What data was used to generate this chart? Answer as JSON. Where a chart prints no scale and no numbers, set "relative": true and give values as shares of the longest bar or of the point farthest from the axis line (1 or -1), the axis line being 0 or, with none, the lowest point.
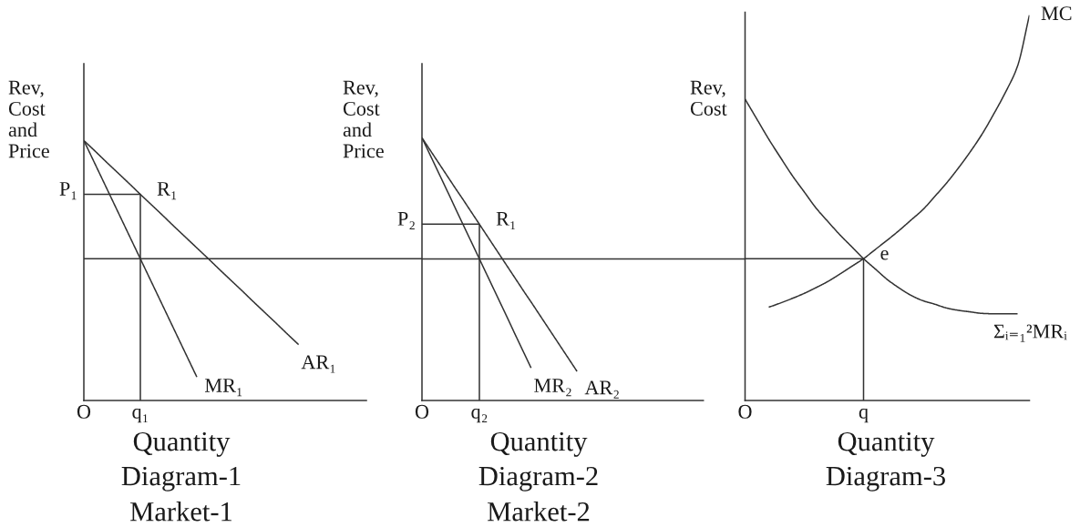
{
  "chart_data": [
    {
      "type": "line",
      "relative": true,
      "title": "Diagram-1",
      "subtitle": "Market-1",
      "xlabel": "Quantity",
      "ylabel": "Rev,\nCost\nand\nPrice",
      "tick_labels": "x",
      "categories": [
        "O",
        null,
        null,
        null,
        null,
        "q₁",
        null,
        null,
        null,
        null,
        null,
        null,
        null,
        null,
        null,
        null,
        null,
        null,
        null,
        null,
        null,
        null,
        null,
        null,
        null,
        null
      ],
      "series": [
        {
          "name": "AR₁",
          "color": "#333333",
          "values": [
            1,
            0.959,
            0.917,
            0.876,
            0.835,
            0.793,
            0.752,
            0.711,
            0.669,
            0.628,
            0.587,
            0.546,
            0.504,
            0.463,
            0.422,
            0.38,
            0.339,
            0.298,
            0.256,
            0.215,
            null,
            null,
            null,
            null,
            null,
            null
          ]
        },
        {
          "name": "MR₁",
          "color": "#333333",
          "values": [
            1,
            0.909,
            0.818,
            0.727,
            0.636,
            0.545,
            0.454,
            0.363,
            0.272,
            0.181,
            0.09,
            null,
            null,
            null,
            null,
            null,
            null,
            null,
            null,
            null,
            null,
            null,
            null,
            null,
            null,
            null
          ]
        },
        {
          "color": "#333333",
          "x": [
            "O",
            "q₁",
            "q₁"
          ],
          "values": [
            0.793,
            0.793,
            0
          ]
        }
      ],
      "ref_lines": [
        {
          "axis": "y",
          "value": 0.545,
          "color": "#333333"
        }
      ],
      "annotations": [
        {
          "text": "P₁",
          "x": "O",
          "y": 0.793
        },
        {
          "text": "R₁",
          "x": "q₁",
          "y": 0.793
        }
      ]
    },
    {
      "type": "line",
      "relative": true,
      "title": "Diagram-2",
      "subtitle": "Market-2",
      "xlabel": "Quantity",
      "ylabel": "Rev,\nCost\nand\nPrice",
      "tick_labels": "x",
      "categories": [
        "O",
        null,
        null,
        null,
        null,
        null,
        null,
        null,
        null,
        null,
        "q₂",
        null,
        null,
        null,
        null,
        null,
        null,
        null,
        null,
        null,
        null,
        null,
        null,
        null,
        null,
        null,
        null,
        null,
        null,
        null,
        null,
        null,
        null,
        null,
        null,
        null,
        null,
        null,
        null,
        null,
        null,
        null,
        null,
        null,
        null,
        null,
        null,
        null,
        null,
        null
      ],
      "series": [
        {
          "name": "AR₂",
          "color": "#333333",
          "values": [
            1,
            0.967,
            0.934,
            0.901,
            0.868,
            0.835,
            0.802,
            0.77,
            0.737,
            0.704,
            0.671,
            0.638,
            0.605,
            0.572,
            0.539,
            0.506,
            0.473,
            0.44,
            0.407,
            0.375,
            0.342,
            0.309,
            0.276,
            0.243,
            0.21,
            0.177,
            0.144,
            0.111,
            null,
            null,
            null,
            null,
            null,
            null,
            null,
            null,
            null,
            null,
            null,
            null,
            null,
            null,
            null,
            null,
            null,
            null,
            null,
            null,
            null,
            null
          ]
        },
        {
          "name": "MR₂",
          "color": "#333333",
          "values": [
            1,
            0.954,
            0.908,
            0.862,
            0.816,
            0.77,
            0.723,
            0.677,
            0.631,
            0.585,
            0.539,
            0.493,
            0.447,
            0.401,
            0.355,
            0.309,
            0.262,
            0.216,
            0.17,
            0.124,
            null,
            null,
            null,
            null,
            null,
            null,
            null,
            null,
            null,
            null,
            null,
            null,
            null,
            null,
            null,
            null,
            null,
            null,
            null,
            null,
            null,
            null,
            null,
            null,
            null,
            null,
            null,
            null,
            null,
            null
          ]
        },
        {
          "color": "#333333",
          "x": [
            "O",
            "q₂",
            "q₂"
          ],
          "values": [
            0.671,
            0.671,
            0
          ]
        }
      ],
      "ref_lines": [
        {
          "axis": "y",
          "value": 0.539,
          "color": "#333333"
        }
      ],
      "annotations": [
        {
          "text": "P₂",
          "x": "O",
          "y": 0.671
        },
        {
          "text": "R₁",
          "x": "q₂",
          "y": 0.671
        }
      ]
    },
    {
      "type": "line",
      "relative": true,
      "title": "Diagram-3",
      "xlabel": "Quantity",
      "ylabel": "Rev,\nCost",
      "tick_labels": "x",
      "categories": [
        "O",
        null,
        null,
        null,
        null,
        null,
        null,
        null,
        null,
        null,
        "q",
        null,
        null,
        null,
        null,
        null,
        null,
        null,
        null,
        null,
        null,
        null,
        null,
        null,
        null
      ],
      "series": [
        {
          "name": "MC",
          "color": "#333333",
          "values": [
            null,
            null,
            0.242,
            0.253,
            0.265,
            0.278,
            0.293,
            0.309,
            0.328,
            0.348,
            0.368,
            0.392,
            0.416,
            0.441,
            0.468,
            0.495,
            0.529,
            0.564,
            0.603,
            0.645,
            0.691,
            0.744,
            0.801,
            0.868,
            1
          ]
        },
        {
          "name": "Σᵢ₌₁²MRᵢ",
          "color": "#333333",
          "values": [
            0.782,
            0.73,
            0.678,
            0.63,
            0.583,
            0.541,
            0.499,
            0.464,
            0.43,
            0.399,
            0.368,
            0.341,
            0.314,
            0.292,
            0.273,
            0.259,
            0.25,
            0.24,
            0.234,
            0.23,
            0.226,
            0.225,
            0.225,
            0.225,
            null
          ]
        },
        {
          "color": "#333333",
          "x": [
            "O",
            "q",
            "q"
          ],
          "values": [
            0.368,
            0.368,
            0
          ]
        }
      ],
      "annotations": [
        {
          "text": "e",
          "x": "q",
          "y": 0.368
        }
      ]
    }
  ]
}
